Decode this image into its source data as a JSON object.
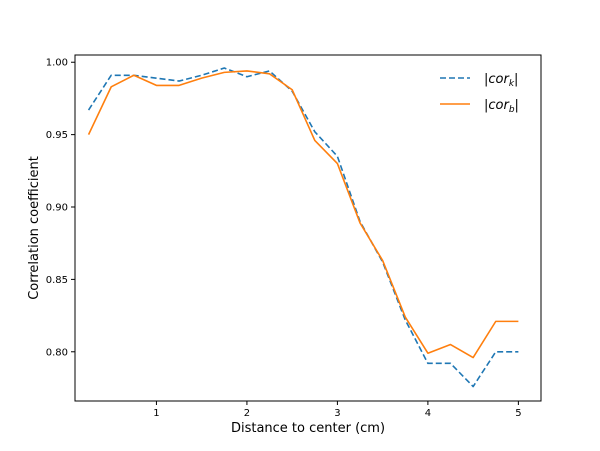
{
  "chart_data": {
    "type": "line",
    "title": "",
    "xlabel": "Distance to center (cm)",
    "ylabel": "Correlation coefficient",
    "xlim": [
      0.1,
      5.25
    ],
    "ylim": [
      0.766,
      1.005
    ],
    "x_ticks": [
      1,
      2,
      3,
      4,
      5
    ],
    "y_ticks": [
      0.8,
      0.85,
      0.9,
      0.95,
      1.0
    ],
    "x_tick_labels": [
      "1",
      "2",
      "3",
      "4",
      "5"
    ],
    "y_tick_labels": [
      "0.80",
      "0.85",
      "0.90",
      "0.95",
      "1.00"
    ],
    "grid": false,
    "legend_position": "top-right",
    "series": [
      {
        "name": "|cor_k|",
        "label_main": "|cor",
        "label_sub": "k",
        "label_end": "|",
        "color": "#1f77b4",
        "style": "dashed",
        "x": [
          0.25,
          0.5,
          0.75,
          1.0,
          1.25,
          1.5,
          1.75,
          2.0,
          2.25,
          2.5,
          2.75,
          3.0,
          3.25,
          3.5,
          3.75,
          4.0,
          4.25,
          4.5,
          4.75,
          5.0
        ],
        "values": [
          0.967,
          0.991,
          0.991,
          0.989,
          0.987,
          0.991,
          0.996,
          0.99,
          0.994,
          0.98,
          0.952,
          0.935,
          0.89,
          0.862,
          0.822,
          0.792,
          0.792,
          0.776,
          0.8,
          0.8
        ]
      },
      {
        "name": "|cor_b|",
        "label_main": "|cor",
        "label_sub": "b",
        "label_end": "|",
        "color": "#ff7f0e",
        "style": "solid",
        "x": [
          0.25,
          0.5,
          0.75,
          1.0,
          1.25,
          1.5,
          1.75,
          2.0,
          2.25,
          2.5,
          2.75,
          3.0,
          3.25,
          3.5,
          3.75,
          4.0,
          4.25,
          4.5,
          4.75,
          5.0
        ],
        "values": [
          0.95,
          0.983,
          0.991,
          0.984,
          0.984,
          0.989,
          0.993,
          0.994,
          0.992,
          0.981,
          0.946,
          0.93,
          0.889,
          0.863,
          0.824,
          0.799,
          0.805,
          0.796,
          0.821,
          0.821
        ]
      }
    ]
  }
}
